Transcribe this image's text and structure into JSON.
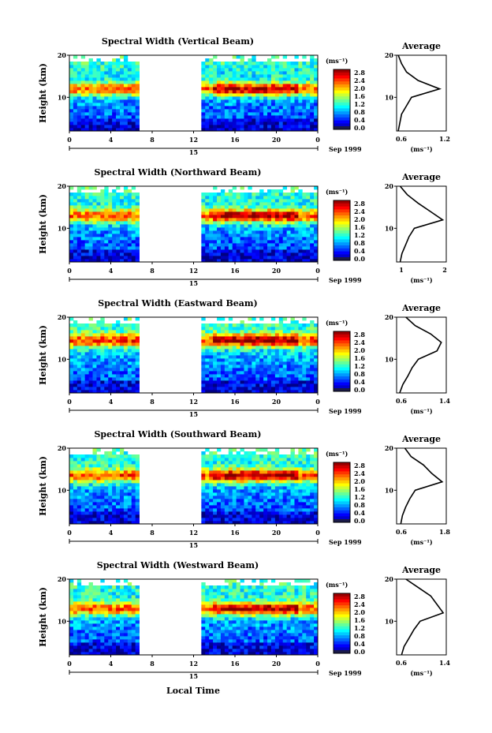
{
  "figure": {
    "xlabel": "Local Time",
    "date_label": "Sep 1999",
    "day_label": "15",
    "colorbar_unit": "(ms⁻¹)",
    "colorbar_ticks": [
      "2.8",
      "2.4",
      "2.0",
      "1.6",
      "1.2",
      "0.8",
      "0.4",
      "0.0"
    ],
    "avg_title": "Average",
    "avg_xlabel": "(ms⁻¹)",
    "ylabel": "Height (km)"
  },
  "chart_data": [
    {
      "type": "heatmap",
      "title": "Spectral Width (Vertical Beam)",
      "x": [
        0,
        4,
        8,
        12,
        16,
        20,
        0
      ],
      "xlim": [
        0,
        24
      ],
      "ylim": [
        2,
        20
      ],
      "yticks": [
        10,
        20
      ],
      "color_range": [
        0.0,
        3.0
      ],
      "missing_intervals": [
        [
          6.7,
          11.5
        ],
        [
          11.8,
          12.7
        ]
      ],
      "average_profile": {
        "title": "Average",
        "xlim": [
          0.6,
          1.2
        ],
        "xticks": [
          "0.6",
          "1.2"
        ],
        "height": [
          2,
          4,
          6,
          8,
          10,
          12,
          14,
          16,
          18,
          20
        ],
        "value": [
          0.62,
          0.64,
          0.66,
          0.72,
          0.78,
          1.12,
          0.86,
          0.72,
          0.66,
          0.62
        ]
      }
    },
    {
      "type": "heatmap",
      "title": "Spectral Width (Northward Beam)",
      "x": [
        0,
        4,
        8,
        12,
        16,
        20,
        0
      ],
      "xlim": [
        0,
        24
      ],
      "ylim": [
        2,
        20
      ],
      "yticks": [
        10,
        20
      ],
      "color_range": [
        0.0,
        3.0
      ],
      "missing_intervals": [
        [
          6.7,
          11.5
        ],
        [
          11.8,
          12.7
        ]
      ],
      "average_profile": {
        "title": "Average",
        "xlim": [
          0.6,
          2.0
        ],
        "xticks": [
          "1",
          "2"
        ],
        "height": [
          2,
          4,
          6,
          8,
          10,
          12,
          14,
          16,
          18,
          20
        ],
        "value": [
          0.7,
          0.75,
          0.85,
          0.95,
          1.1,
          1.9,
          1.55,
          1.2,
          0.9,
          0.7
        ]
      }
    },
    {
      "type": "heatmap",
      "title": "Spectral Width (Eastward Beam)",
      "x": [
        0,
        4,
        8,
        12,
        16,
        20,
        0
      ],
      "xlim": [
        0,
        24
      ],
      "ylim": [
        2,
        20
      ],
      "yticks": [
        10,
        20
      ],
      "color_range": [
        0.0,
        3.0
      ],
      "missing_intervals": [
        [
          6.7,
          11.5
        ],
        [
          11.8,
          12.7
        ]
      ],
      "average_profile": {
        "title": "Average",
        "xlim": [
          0.6,
          1.4
        ],
        "xticks": [
          "0.6",
          "1.4"
        ],
        "height": [
          2,
          4,
          6,
          8,
          10,
          12,
          14,
          16,
          18,
          20
        ],
        "value": [
          0.65,
          0.7,
          0.78,
          0.85,
          0.95,
          1.25,
          1.32,
          1.15,
          0.9,
          0.75
        ]
      }
    },
    {
      "type": "heatmap",
      "title": "Spectral Width (Southward Beam)",
      "x": [
        0,
        4,
        8,
        12,
        16,
        20,
        0
      ],
      "xlim": [
        0,
        24
      ],
      "ylim": [
        2,
        20
      ],
      "yticks": [
        10,
        20
      ],
      "color_range": [
        0.0,
        3.0
      ],
      "missing_intervals": [
        [
          6.7,
          11.5
        ],
        [
          11.8,
          12.7
        ]
      ],
      "average_profile": {
        "title": "Average",
        "xlim": [
          0.6,
          1.8
        ],
        "xticks": [
          "0.6",
          "1.8"
        ],
        "height": [
          2,
          4,
          6,
          8,
          10,
          12,
          14,
          16,
          18,
          20
        ],
        "value": [
          0.7,
          0.74,
          0.82,
          0.92,
          1.05,
          1.7,
          1.45,
          1.25,
          0.95,
          0.8
        ]
      }
    },
    {
      "type": "heatmap",
      "title": "Spectral Width (Westward Beam)",
      "x": [
        0,
        4,
        8,
        12,
        16,
        20,
        0
      ],
      "xlim": [
        0,
        24
      ],
      "ylim": [
        2,
        20
      ],
      "yticks": [
        10,
        20
      ],
      "color_range": [
        0.0,
        3.0
      ],
      "missing_intervals": [
        [
          6.7,
          11.5
        ],
        [
          11.8,
          12.7
        ]
      ],
      "average_profile": {
        "title": "Average",
        "xlim": [
          0.6,
          1.4
        ],
        "xticks": [
          "0.6",
          "1.4"
        ],
        "height": [
          2,
          4,
          6,
          8,
          10,
          12,
          14,
          16,
          18,
          20
        ],
        "value": [
          0.68,
          0.72,
          0.8,
          0.88,
          0.98,
          1.35,
          1.25,
          1.15,
          0.95,
          0.75
        ]
      }
    }
  ]
}
